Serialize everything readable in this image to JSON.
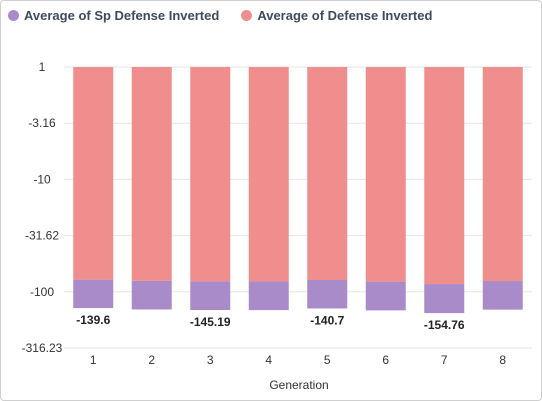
{
  "chart_data": {
    "type": "bar",
    "stacked": true,
    "categories": [
      "1",
      "2",
      "3",
      "4",
      "5",
      "6",
      "7",
      "8"
    ],
    "xlabel": "Generation",
    "ylabel": "",
    "y_scale": "log_inverted",
    "y_ticks": [
      "1",
      "-3.16",
      "-10",
      "-31.62",
      "-100",
      "-316.23"
    ],
    "grid": true,
    "legend_position": "top-left",
    "series": [
      {
        "name": "Average of Sp Defense Inverted",
        "color": "#a98bc9",
        "values": [
          -68.1,
          -69.3,
          -70.5,
          -73.9,
          -67.4,
          -71.3,
          -74.4,
          -70.0
        ]
      },
      {
        "name": "Average of Defense Inverted",
        "color": "#f08d8d",
        "values": [
          -71.5,
          -74.3,
          -74.7,
          -71.5,
          -73.3,
          -75.0,
          -80.4,
          -74.2
        ]
      }
    ],
    "totals": [
      -139.6,
      -143.6,
      -145.19,
      -145.4,
      -140.7,
      -146.3,
      -154.76,
      -144.2
    ],
    "data_labels": [
      {
        "index": 0,
        "text": "-139.6"
      },
      {
        "index": 2,
        "text": "-145.19"
      },
      {
        "index": 4,
        "text": "-140.7"
      },
      {
        "index": 6,
        "text": "-154.76"
      }
    ]
  }
}
